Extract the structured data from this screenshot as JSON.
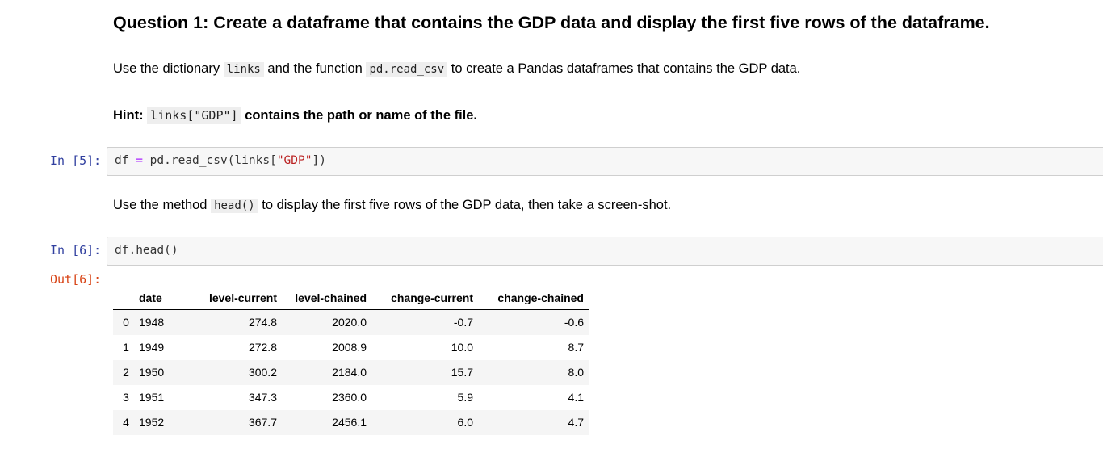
{
  "question": {
    "title": "Question 1: Create a dataframe that contains the GDP data and display the first five rows of the dataframe."
  },
  "para1": {
    "before": "Use the dictionary",
    "code1": "links",
    "middle": "and the function",
    "code2": "pd.read_csv",
    "after": "to create a Pandas dataframes that contains the GDP data."
  },
  "hint": {
    "label": "Hint:",
    "code": "links[\"GDP\"]",
    "text": "contains the path or name of the file."
  },
  "cell5": {
    "prompt": "In [5]:",
    "var": "df",
    "op": "=",
    "call": "pd.read_csv(links[",
    "str": "\"GDP\"",
    "close": "])"
  },
  "para2": {
    "before": "Use the method",
    "code": "head()",
    "after": "to display the first five rows of the GDP data, then take a screen-shot."
  },
  "cell6": {
    "prompt": "In [6]:",
    "code": "df.head()",
    "out_prompt": "Out[6]:"
  },
  "table": {
    "columns": [
      "",
      "date",
      "level-current",
      "level-chained",
      "change-current",
      "change-chained"
    ],
    "rows": [
      [
        "0",
        "1948",
        "274.8",
        "2020.0",
        "-0.7",
        "-0.6"
      ],
      [
        "1",
        "1949",
        "272.8",
        "2008.9",
        "10.0",
        "8.7"
      ],
      [
        "2",
        "1950",
        "300.2",
        "2184.0",
        "15.7",
        "8.0"
      ],
      [
        "3",
        "1951",
        "347.3",
        "2360.0",
        "5.9",
        "4.1"
      ],
      [
        "4",
        "1952",
        "367.7",
        "2456.1",
        "6.0",
        "4.7"
      ]
    ]
  }
}
